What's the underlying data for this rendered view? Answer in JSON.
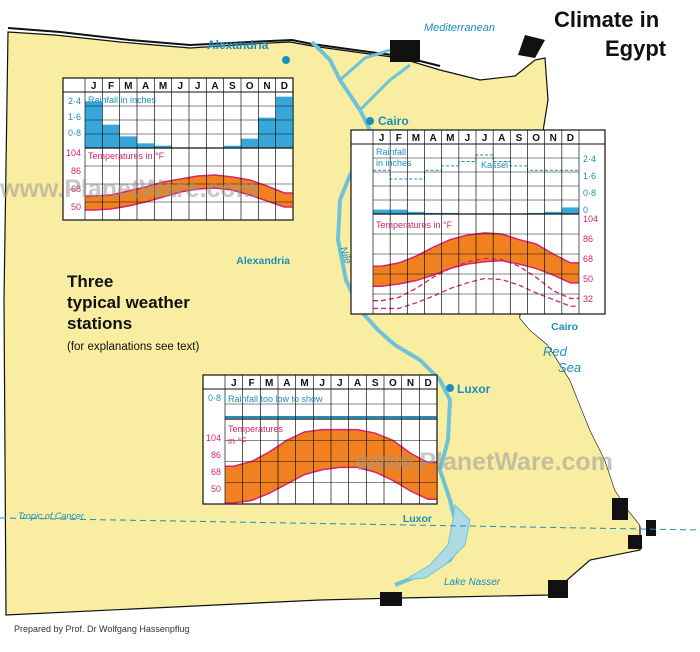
{
  "title": {
    "line1": "Climate in",
    "line2": "Egypt"
  },
  "places": {
    "alexandria": "Alexandria",
    "cairo": "Cairo",
    "luxor": "Luxor",
    "nile": "Nile",
    "mediterranean": "Mediterranean",
    "red_sea_1": "Red",
    "red_sea_2": "Sea",
    "tropic": "Tropic of Cancer",
    "lake_nasser": "Lake Nasser"
  },
  "legend_text": {
    "line1": "Three",
    "line2": "typical weather",
    "line3": "stations",
    "note": "(for explanations see text)"
  },
  "credit": "Prepared by Prof. Dr Wolfgang Hassenpflug",
  "watermark": "www.PlanetWare.com",
  "colors": {
    "land": "#f8eda0",
    "water": "#aedbe3",
    "rain": "#1a8fbf",
    "temp_fill": "#f08020",
    "temp_line": "#d6246e",
    "border": "#111111"
  },
  "chart_data": [
    {
      "type": "area",
      "station": "Alexandria",
      "months": [
        "J",
        "F",
        "M",
        "A",
        "M",
        "J",
        "J",
        "A",
        "S",
        "O",
        "N",
        "D"
      ],
      "rain_label": "Rainfall in inches",
      "rain_ticks": [
        "2·4",
        "1·6",
        "0·8"
      ],
      "rain_inches": [
        2.0,
        1.0,
        0.5,
        0.2,
        0.1,
        0.0,
        0.0,
        0.0,
        0.1,
        0.4,
        1.3,
        2.2
      ],
      "temp_label": "Temperatures in °F",
      "temp_ticks": [
        "104",
        "86",
        "68",
        "50"
      ],
      "temp_max_f": [
        65,
        66,
        70,
        74,
        79,
        82,
        85,
        86,
        84,
        81,
        75,
        68
      ],
      "temp_min_f": [
        51,
        52,
        55,
        59,
        64,
        69,
        72,
        73,
        71,
        66,
        60,
        54
      ]
    },
    {
      "type": "area",
      "station": "Cairo",
      "months": [
        "J",
        "F",
        "M",
        "A",
        "M",
        "J",
        "J",
        "A",
        "S",
        "O",
        "N",
        "D"
      ],
      "rain_label_1": "Rainfall",
      "rain_label_2": "in inches",
      "compare_label": "Kassel",
      "rain_ticks": [
        "2·4",
        "1·6",
        "0·8",
        "0"
      ],
      "rain_inches": [
        0.2,
        0.2,
        0.1,
        0.05,
        0.05,
        0.0,
        0.0,
        0.0,
        0.0,
        0.05,
        0.1,
        0.3
      ],
      "kassel_rain_inches": [
        2.0,
        1.6,
        1.6,
        2.0,
        2.2,
        2.4,
        2.7,
        2.4,
        2.2,
        2.0,
        2.0,
        2.0
      ],
      "temp_label": "Temperatures in °F",
      "temp_ticks": [
        "104",
        "86",
        "68",
        "50",
        "32"
      ],
      "temp_max_f": [
        66,
        69,
        75,
        83,
        90,
        94,
        96,
        95,
        90,
        86,
        77,
        69
      ],
      "temp_min_f": [
        48,
        50,
        53,
        58,
        64,
        68,
        70,
        71,
        68,
        64,
        58,
        51
      ],
      "kassel_max_f": [
        35,
        38,
        46,
        56,
        64,
        70,
        73,
        72,
        66,
        56,
        44,
        37
      ],
      "kassel_min_f": [
        28,
        28,
        33,
        39,
        46,
        51,
        55,
        54,
        49,
        42,
        36,
        30
      ]
    },
    {
      "type": "area",
      "station": "Luxor",
      "months": [
        "J",
        "F",
        "M",
        "A",
        "M",
        "J",
        "J",
        "A",
        "S",
        "O",
        "N",
        "D"
      ],
      "rain_label": "Rainfall too low to show",
      "rain_ticks": [
        "0·8"
      ],
      "temp_label_1": "Temperatures",
      "temp_label_2": "in °F",
      "temp_ticks": [
        "104",
        "86",
        "68",
        "50"
      ],
      "temp_max_f": [
        73,
        77,
        85,
        95,
        102,
        104,
        104,
        104,
        101,
        95,
        84,
        76
      ],
      "temp_min_f": [
        42,
        44,
        50,
        58,
        66,
        70,
        72,
        72,
        68,
        61,
        52,
        45
      ]
    }
  ]
}
